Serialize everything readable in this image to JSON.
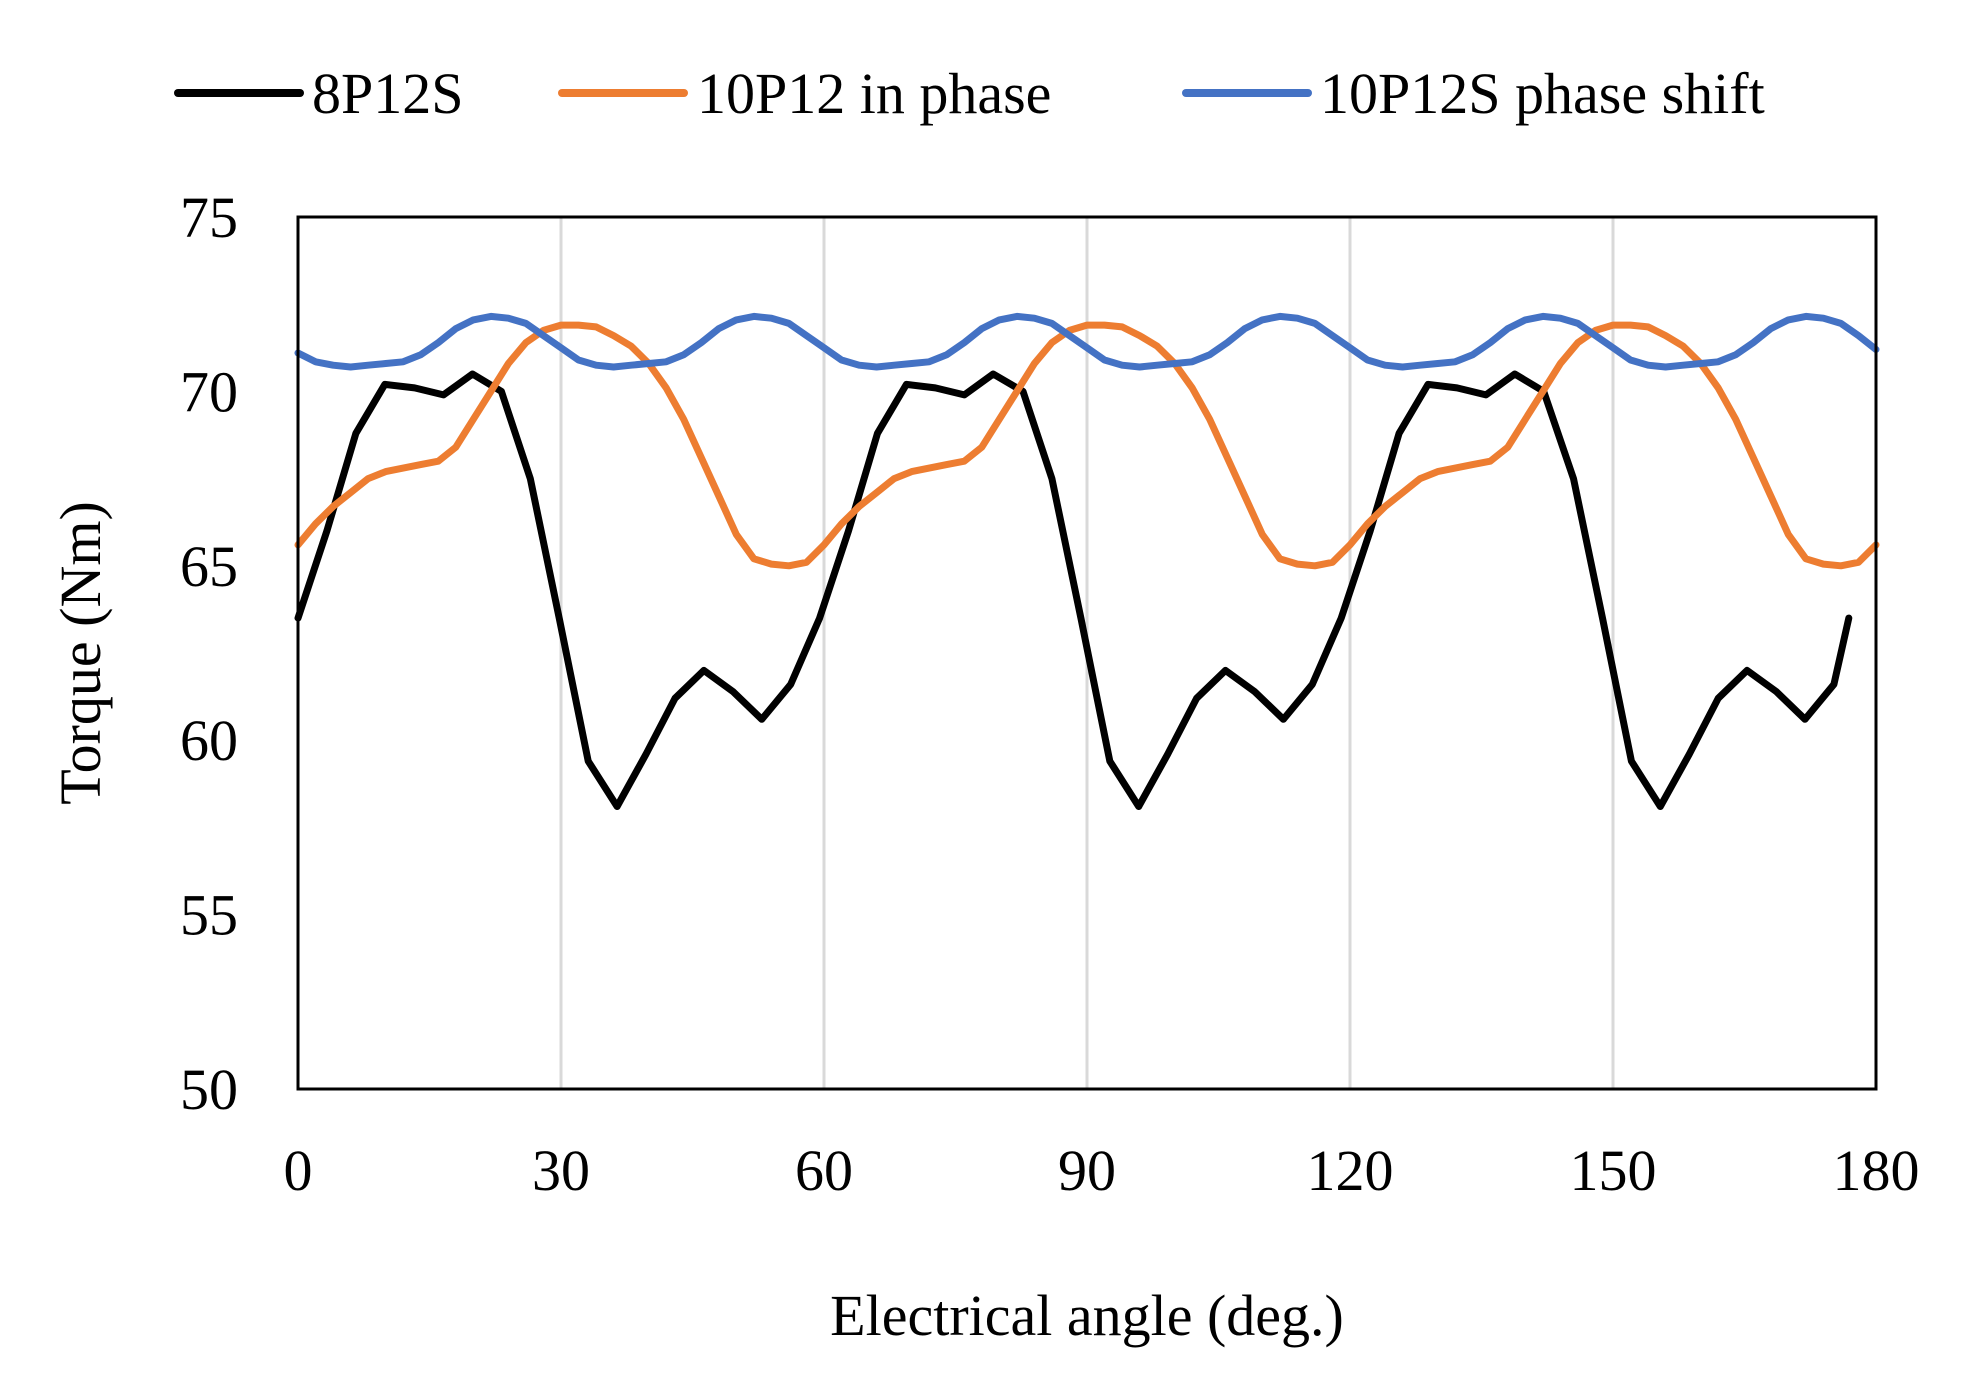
{
  "chart_data": {
    "type": "line",
    "xlabel": "Electrical angle (deg.)",
    "ylabel": "Torque (Nm)",
    "xlim": [
      0,
      180
    ],
    "ylim": [
      50,
      75
    ],
    "xticks": [
      0,
      30,
      60,
      90,
      120,
      150,
      180
    ],
    "yticks": [
      50,
      55,
      60,
      65,
      70,
      75
    ],
    "xtick_labels": [
      "0",
      "30",
      "60",
      "90",
      "120",
      "150",
      "180"
    ],
    "ytick_labels": [
      "50",
      "55",
      "60",
      "65",
      "70",
      "75"
    ],
    "grid": "vertical",
    "legend_position": "top",
    "series": [
      {
        "name": "8P12S",
        "color": "#000000",
        "x": [
          0,
          3.3,
          6.6,
          9.9,
          13.3,
          16.6,
          19.9,
          23.2,
          26.5,
          29.8,
          33.1,
          36.4,
          39.7,
          43,
          46.3,
          49.6,
          52.9,
          56.2,
          59.5,
          62.8,
          66.1,
          69.4,
          72.7,
          76,
          79.3,
          82.7,
          86,
          89.3,
          92.6,
          95.9,
          99.2,
          102.5,
          105.8,
          109.1,
          112.4,
          115.7,
          119,
          122.3,
          125.6,
          128.9,
          132.2,
          135.5,
          138.8,
          142.1,
          145.5,
          148.8,
          152.1,
          155.4,
          158.7,
          162,
          165.3,
          168.6,
          171.9,
          175.2,
          176.9
        ],
        "y": [
          63.5,
          66,
          68.8,
          70.2,
          70.1,
          69.9,
          70.5,
          70,
          67.5,
          63.5,
          59.4,
          58.1,
          59.6,
          61.2,
          62,
          61.4,
          60.6,
          61.6,
          63.5,
          66,
          68.8,
          70.2,
          70.1,
          69.9,
          70.5,
          70,
          67.5,
          63.5,
          59.4,
          58.1,
          59.6,
          61.2,
          62,
          61.4,
          60.6,
          61.6,
          63.5,
          66,
          68.8,
          70.2,
          70.1,
          69.9,
          70.5,
          70,
          67.5,
          63.5,
          59.4,
          58.1,
          59.6,
          61.2,
          62,
          61.4,
          60.6,
          61.6,
          63.5
        ]
      },
      {
        "name": "10P12 in phase",
        "color": "#ED7D31",
        "x": [
          0,
          2,
          4,
          6,
          8,
          10,
          12,
          14,
          16,
          18,
          20,
          22,
          24,
          26,
          28,
          30,
          32,
          34,
          36,
          38,
          40,
          42,
          44,
          46,
          48,
          50,
          52,
          54,
          56,
          58,
          60,
          62,
          64,
          66,
          68,
          70,
          72,
          74,
          76,
          78,
          80,
          82,
          84,
          86,
          88,
          90,
          92,
          94,
          96,
          98,
          100,
          102,
          104,
          106,
          108,
          110,
          112,
          114,
          116,
          118,
          120,
          122,
          124,
          126,
          128,
          130,
          132,
          134,
          136,
          138,
          140,
          142,
          144,
          146,
          148,
          150,
          152,
          154,
          156,
          158,
          160,
          162,
          164,
          166,
          168,
          170,
          172,
          174,
          176,
          178,
          180
        ],
        "y": [
          65.6,
          66.2,
          66.7,
          67.1,
          67.5,
          67.7,
          67.8,
          67.9,
          68,
          68.4,
          69.2,
          70,
          70.8,
          71.4,
          71.75,
          71.9,
          71.9,
          71.85,
          71.6,
          71.3,
          70.8,
          70.1,
          69.2,
          68.1,
          67,
          65.9,
          65.2,
          65.05,
          65,
          65.1,
          65.6,
          66.2,
          66.7,
          67.1,
          67.5,
          67.7,
          67.8,
          67.9,
          68,
          68.4,
          69.2,
          70,
          70.8,
          71.4,
          71.75,
          71.9,
          71.9,
          71.85,
          71.6,
          71.3,
          70.8,
          70.1,
          69.2,
          68.1,
          67,
          65.9,
          65.2,
          65.05,
          65,
          65.1,
          65.6,
          66.2,
          66.7,
          67.1,
          67.5,
          67.7,
          67.8,
          67.9,
          68,
          68.4,
          69.2,
          70,
          70.8,
          71.4,
          71.75,
          71.9,
          71.9,
          71.85,
          71.6,
          71.3,
          70.8,
          70.1,
          69.2,
          68.1,
          67,
          65.9,
          65.2,
          65.05,
          65,
          65.1,
          65.6
        ]
      },
      {
        "name": "10P12S phase shift",
        "color": "#4472C4",
        "x": [
          0,
          2,
          4,
          6,
          8,
          10,
          12,
          14,
          16,
          18,
          20,
          22,
          24,
          26,
          28,
          30,
          32,
          34,
          36,
          38,
          40,
          42,
          44,
          46,
          48,
          50,
          52,
          54,
          56,
          58,
          60,
          62,
          64,
          66,
          68,
          70,
          72,
          74,
          76,
          78,
          80,
          82,
          84,
          86,
          88,
          90,
          92,
          94,
          96,
          98,
          100,
          102,
          104,
          106,
          108,
          110,
          112,
          114,
          116,
          118,
          120,
          122,
          124,
          126,
          128,
          130,
          132,
          134,
          136,
          138,
          140,
          142,
          144,
          146,
          148,
          150,
          152,
          154,
          156,
          158,
          160,
          162,
          164,
          166,
          168,
          170,
          172,
          174,
          176,
          178,
          180
        ],
        "y": [
          71.1,
          70.85,
          70.75,
          70.7,
          70.75,
          70.8,
          70.85,
          71.05,
          71.4,
          71.8,
          72.05,
          72.15,
          72.1,
          71.95,
          71.6,
          71.25,
          70.9,
          70.75,
          70.7,
          70.75,
          70.8,
          70.85,
          71.05,
          71.4,
          71.8,
          72.05,
          72.15,
          72.1,
          71.95,
          71.6,
          71.25,
          70.9,
          70.75,
          70.7,
          70.75,
          70.8,
          70.85,
          71.05,
          71.4,
          71.8,
          72.05,
          72.15,
          72.1,
          71.95,
          71.6,
          71.25,
          70.9,
          70.75,
          70.7,
          70.75,
          70.8,
          70.85,
          71.05,
          71.4,
          71.8,
          72.05,
          72.15,
          72.1,
          71.95,
          71.6,
          71.25,
          70.9,
          70.75,
          70.7,
          70.75,
          70.8,
          70.85,
          71.05,
          71.4,
          71.8,
          72.05,
          72.15,
          72.1,
          71.95,
          71.6,
          71.25,
          70.9,
          70.75,
          70.7,
          70.75,
          70.8,
          70.85,
          71.05,
          71.4,
          71.8,
          72.05,
          72.15,
          72.1,
          71.95,
          71.6,
          71.2
        ]
      }
    ]
  }
}
